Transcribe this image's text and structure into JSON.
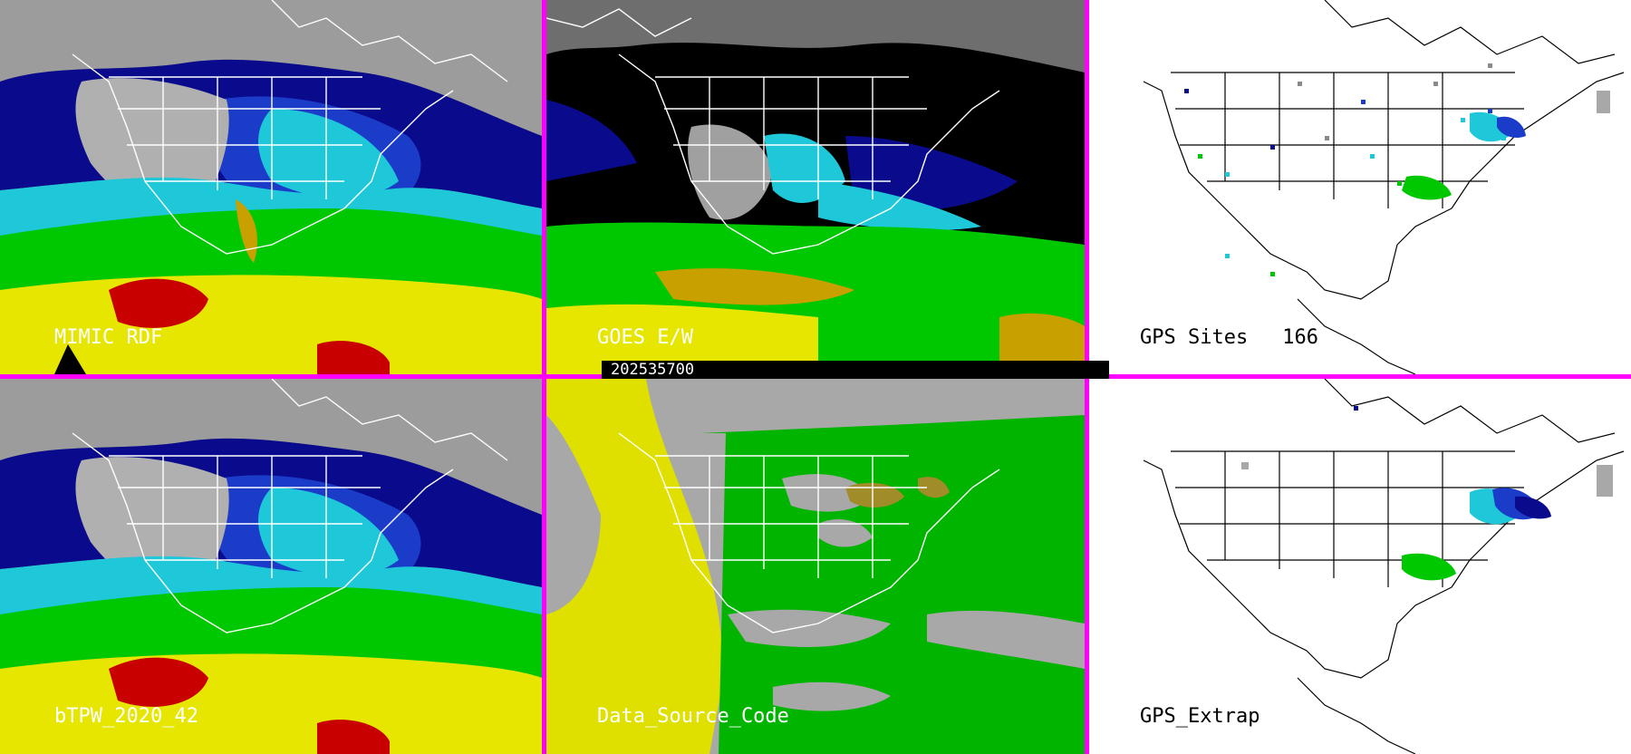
{
  "panels": [
    {
      "id": "mimic-rdf",
      "label": "MIMIC RDF",
      "style": "moisture"
    },
    {
      "id": "goes-ew",
      "label": "GOES E/W",
      "style": "goes"
    },
    {
      "id": "gps-sites",
      "label": "GPS Sites",
      "count": "166",
      "style": "gps"
    },
    {
      "id": "btpw",
      "label": "bTPW_2020_42",
      "style": "moisture"
    },
    {
      "id": "data-source-code",
      "label": "Data_Source_Code",
      "style": "source"
    },
    {
      "id": "gps-extrap",
      "label": "GPS_Extrap",
      "style": "gps"
    }
  ],
  "timestamp": "202535700",
  "colors": {
    "divider": "#ff00ff",
    "scale": [
      "#8a8a8a",
      "#d0d0d0",
      "#0a0a8c",
      "#1a3cc8",
      "#1ec8d8",
      "#7ee8f0",
      "#00c800",
      "#66e000",
      "#e6e600",
      "#c8a000",
      "#c80000"
    ],
    "source_gray": "#a8a8a8",
    "source_green": "#00b400",
    "source_yellow": "#e0e000",
    "source_olive": "#a08c28"
  }
}
